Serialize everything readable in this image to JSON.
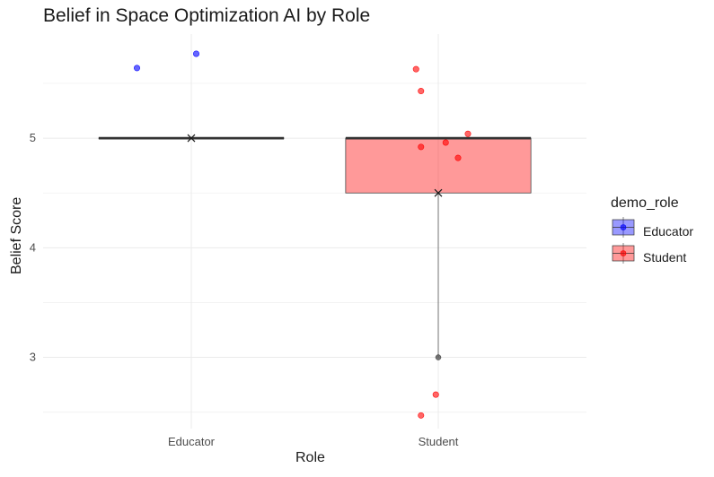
{
  "chart_data": {
    "type": "boxplot",
    "title": "Belief in Space Optimization AI by Role",
    "xlabel": "Role",
    "ylabel": "Belief Score",
    "categories": [
      "Educator",
      "Student"
    ],
    "ylim": [
      2.35,
      5.95
    ],
    "yticks": [
      3,
      4,
      5
    ],
    "grid": true,
    "legend": {
      "title": "demo_role",
      "placement": "right",
      "entries": [
        "Educator",
        "Student"
      ]
    },
    "colors": {
      "Educator": "#0000ff",
      "Student": "#ff0000"
    },
    "boxes": [
      {
        "category": "Educator",
        "q1": 5,
        "median": 5,
        "q3": 5,
        "whisker_low": 5,
        "whisker_high": 5,
        "mean": 5,
        "outliers": []
      },
      {
        "category": "Student",
        "q1": 4.5,
        "median": 5,
        "q3": 5,
        "whisker_low": 3,
        "whisker_high": 5,
        "mean": 4.5,
        "outliers": [
          3
        ]
      }
    ],
    "points": [
      {
        "category": "Educator",
        "jitter": -0.22,
        "y": 5.64
      },
      {
        "category": "Educator",
        "jitter": 0.02,
        "y": 5.77
      },
      {
        "category": "Student",
        "jitter": -0.09,
        "y": 5.63
      },
      {
        "category": "Student",
        "jitter": -0.07,
        "y": 5.43
      },
      {
        "category": "Student",
        "jitter": 0.12,
        "y": 5.04
      },
      {
        "category": "Student",
        "jitter": 0.03,
        "y": 4.96
      },
      {
        "category": "Student",
        "jitter": -0.07,
        "y": 4.92
      },
      {
        "category": "Student",
        "jitter": 0.08,
        "y": 4.82
      },
      {
        "category": "Student",
        "jitter": -0.01,
        "y": 2.66
      },
      {
        "category": "Student",
        "jitter": -0.07,
        "y": 2.47
      }
    ]
  }
}
